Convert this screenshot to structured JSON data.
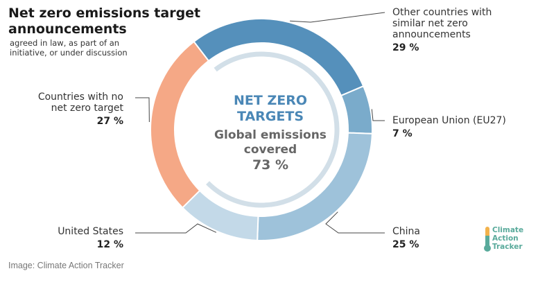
{
  "chart_data": {
    "type": "donut",
    "title": "Net zero emissions target announcements",
    "subtitle": "agreed in law, as part of an initiative, or under discussion",
    "center": {
      "title": "NET ZERO TARGETS",
      "subtitle": "Global emissions covered",
      "value": "73 %"
    },
    "slices": [
      {
        "name": "Other countries with similar net zero announcements",
        "value": 29,
        "label": "29 %",
        "color": "#5590bb"
      },
      {
        "name": "European Union (EU27)",
        "value": 7,
        "label": "7 %",
        "color": "#7aabcb"
      },
      {
        "name": "China",
        "value": 25,
        "label": "25 %",
        "color": "#9ec2da"
      },
      {
        "name": "United States",
        "value": 12,
        "label": "12 %",
        "color": "#c3d9e8"
      },
      {
        "name": "Countries with no net zero target",
        "value": 27,
        "label": "27 %",
        "color": "#f5a886"
      }
    ],
    "inner_arc_value": 73,
    "inner_arc_color": "#d2dfe8"
  },
  "credit": "Image: Climate Action Tracker",
  "logo": {
    "lines": [
      "Climate",
      "Action",
      "Tracker"
    ]
  }
}
